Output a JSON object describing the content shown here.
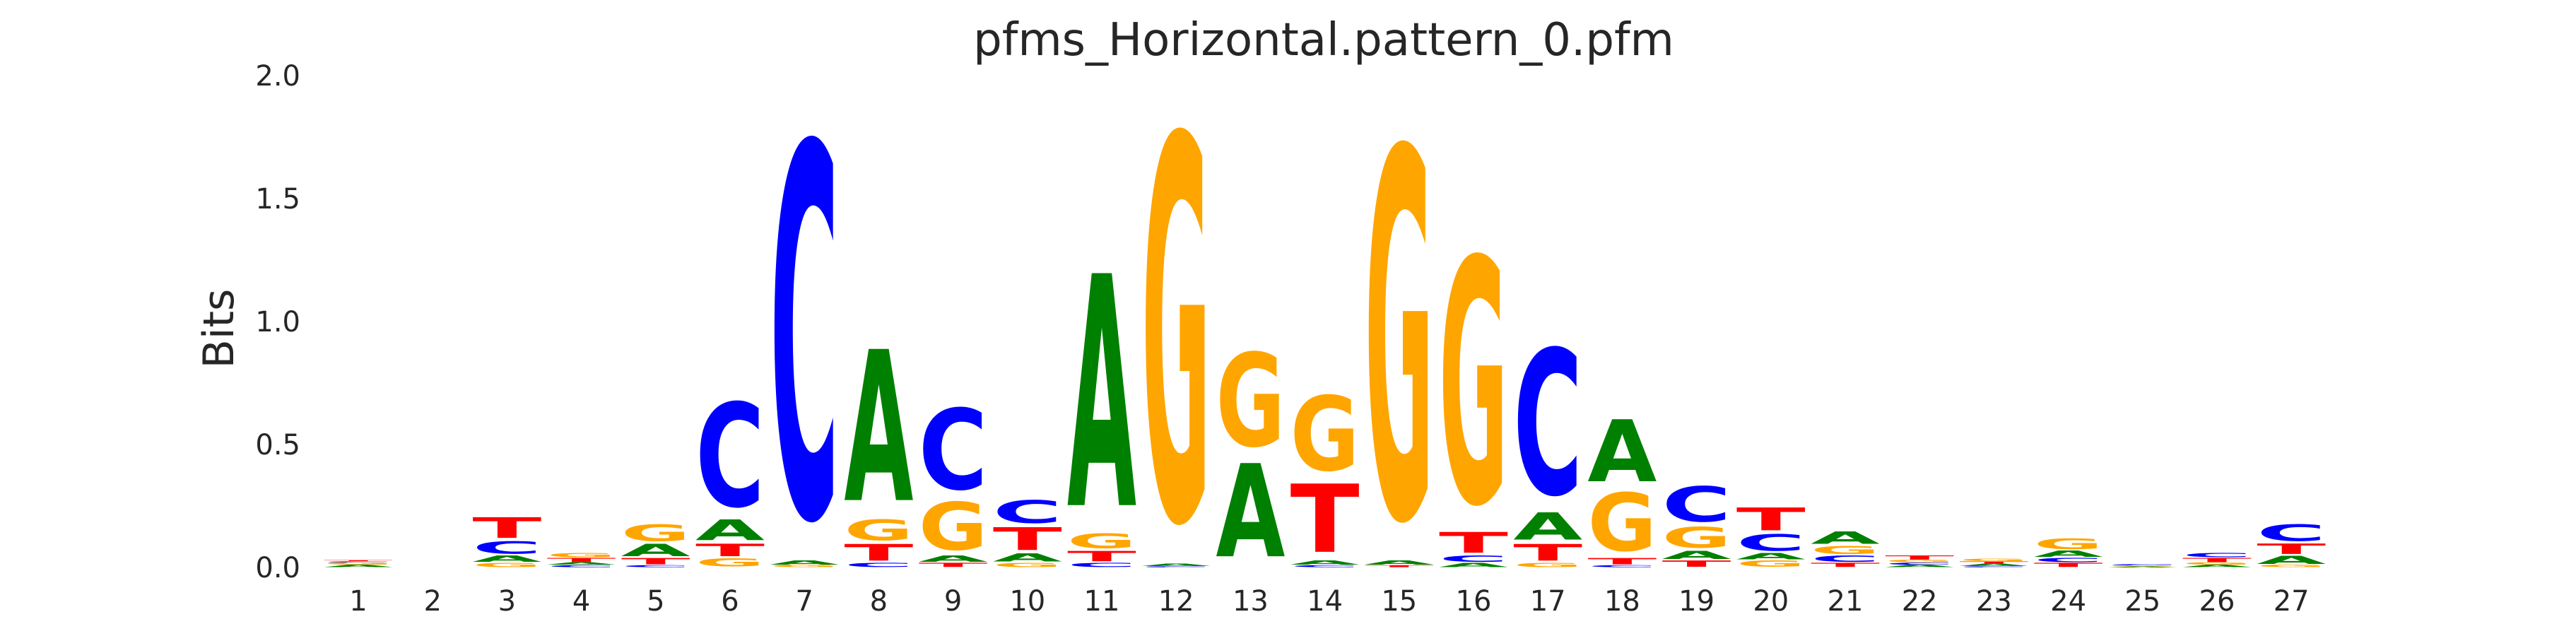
{
  "chart_data": {
    "type": "sequence-logo",
    "title": "pfms_Horizontal.pattern_0.pfm",
    "ylabel": "Bits",
    "xlabel": "",
    "ylim": [
      0,
      2.0
    ],
    "yticks": [
      "0.0",
      "0.5",
      "1.0",
      "1.5",
      "2.0"
    ],
    "grid": false,
    "colors": {
      "A": "#008000",
      "C": "#0000ff",
      "G": "#ffa500",
      "T": "#ff0000"
    },
    "positions": [
      {
        "label": "1",
        "letters": [
          [
            "A",
            0.01
          ],
          [
            "G",
            0.01
          ],
          [
            "C",
            0.005
          ],
          [
            "T",
            0.005
          ]
        ]
      },
      {
        "label": "2",
        "letters": []
      },
      {
        "label": "3",
        "letters": [
          [
            "G",
            0.02
          ],
          [
            "A",
            0.03
          ],
          [
            "C",
            0.06
          ],
          [
            "T",
            0.1
          ]
        ]
      },
      {
        "label": "4",
        "letters": [
          [
            "C",
            0.01
          ],
          [
            "A",
            0.01
          ],
          [
            "T",
            0.02
          ],
          [
            "G",
            0.02
          ]
        ]
      },
      {
        "label": "5",
        "letters": [
          [
            "C",
            0.01
          ],
          [
            "T",
            0.03
          ],
          [
            "A",
            0.06
          ],
          [
            "G",
            0.08
          ]
        ]
      },
      {
        "label": "6",
        "letters": [
          [
            "G",
            0.04
          ],
          [
            "T",
            0.06
          ],
          [
            "A",
            0.1
          ],
          [
            "C",
            0.5
          ]
        ]
      },
      {
        "label": "7",
        "letters": [
          [
            "G",
            0.01
          ],
          [
            "A",
            0.02
          ],
          [
            "C",
            1.8
          ]
        ]
      },
      {
        "label": "8",
        "letters": [
          [
            "C",
            0.02
          ],
          [
            "T",
            0.08
          ],
          [
            "G",
            0.1
          ],
          [
            "A",
            0.73
          ]
        ]
      },
      {
        "label": "9",
        "letters": [
          [
            "T",
            0.02
          ],
          [
            "A",
            0.03
          ],
          [
            "G",
            0.23
          ],
          [
            "C",
            0.39
          ]
        ]
      },
      {
        "label": "10",
        "letters": [
          [
            "G",
            0.02
          ],
          [
            "A",
            0.04
          ],
          [
            "T",
            0.11
          ],
          [
            "C",
            0.11
          ]
        ]
      },
      {
        "label": "11",
        "letters": [
          [
            "C",
            0.02
          ],
          [
            "T",
            0.05
          ],
          [
            "G",
            0.07
          ],
          [
            "A",
            1.12
          ]
        ]
      },
      {
        "label": "12",
        "letters": [
          [
            "C",
            0.005
          ],
          [
            "A",
            0.01
          ],
          [
            "G",
            1.85
          ]
        ]
      },
      {
        "label": "13",
        "letters": [
          [
            "A",
            0.45
          ],
          [
            "G",
            0.45
          ]
        ]
      },
      {
        "label": "14",
        "letters": [
          [
            "C",
            0.01
          ],
          [
            "A",
            0.02
          ],
          [
            "T",
            0.33
          ],
          [
            "G",
            0.36
          ]
        ]
      },
      {
        "label": "15",
        "letters": [
          [
            "T",
            0.01
          ],
          [
            "A",
            0.02
          ],
          [
            "G",
            1.78
          ]
        ]
      },
      {
        "label": "16",
        "letters": [
          [
            "A",
            0.02
          ],
          [
            "C",
            0.03
          ],
          [
            "T",
            0.1
          ],
          [
            "G",
            1.18
          ]
        ]
      },
      {
        "label": "17",
        "letters": [
          [
            "G",
            0.02
          ],
          [
            "T",
            0.08
          ],
          [
            "A",
            0.13
          ],
          [
            "C",
            0.7
          ]
        ]
      },
      {
        "label": "18",
        "letters": [
          [
            "C",
            0.01
          ],
          [
            "T",
            0.03
          ],
          [
            "G",
            0.28
          ],
          [
            "A",
            0.3
          ]
        ]
      },
      {
        "label": "19",
        "letters": [
          [
            "T",
            0.03
          ],
          [
            "A",
            0.04
          ],
          [
            "G",
            0.1
          ],
          [
            "C",
            0.17
          ]
        ]
      },
      {
        "label": "20",
        "letters": [
          [
            "G",
            0.03
          ],
          [
            "A",
            0.03
          ],
          [
            "C",
            0.08
          ],
          [
            "T",
            0.11
          ]
        ]
      },
      {
        "label": "21",
        "letters": [
          [
            "T",
            0.02
          ],
          [
            "C",
            0.03
          ],
          [
            "G",
            0.04
          ],
          [
            "A",
            0.06
          ]
        ]
      },
      {
        "label": "22",
        "letters": [
          [
            "A",
            0.01
          ],
          [
            "C",
            0.01
          ],
          [
            "G",
            0.01
          ],
          [
            "T",
            0.02
          ]
        ]
      },
      {
        "label": "23",
        "letters": [
          [
            "C",
            0.005
          ],
          [
            "A",
            0.01
          ],
          [
            "T",
            0.01
          ],
          [
            "G",
            0.01
          ]
        ]
      },
      {
        "label": "24",
        "letters": [
          [
            "T",
            0.02
          ],
          [
            "C",
            0.02
          ],
          [
            "A",
            0.03
          ],
          [
            "G",
            0.05
          ]
        ]
      },
      {
        "label": "25",
        "letters": [
          [
            "A",
            0.004
          ],
          [
            "G",
            0.004
          ],
          [
            "C",
            0.006
          ]
        ]
      },
      {
        "label": "26",
        "letters": [
          [
            "A",
            0.01
          ],
          [
            "G",
            0.01
          ],
          [
            "T",
            0.02
          ],
          [
            "C",
            0.02
          ]
        ]
      },
      {
        "label": "27",
        "letters": [
          [
            "G",
            0.01
          ],
          [
            "A",
            0.04
          ],
          [
            "T",
            0.05
          ],
          [
            "C",
            0.08
          ]
        ]
      }
    ]
  }
}
